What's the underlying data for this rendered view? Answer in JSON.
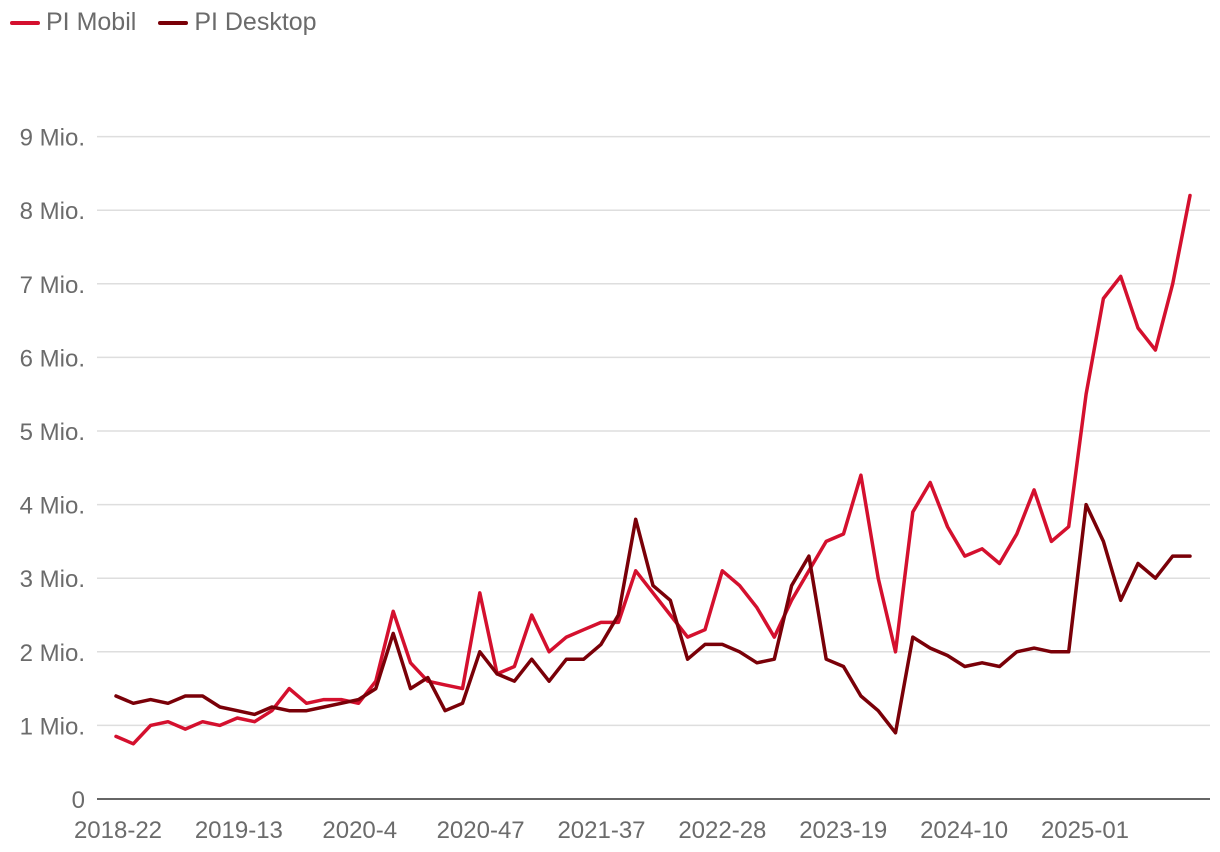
{
  "chart_data": {
    "type": "line",
    "xlabel": "",
    "ylabel": "",
    "grid": true,
    "legend_position": "top-left",
    "x_tick_labels": [
      "2018-22",
      "2019-13",
      "2020-4",
      "2020-47",
      "2021-37",
      "2022-28",
      "2023-19",
      "2024-10",
      "2025-01"
    ],
    "y_ticks": [
      0,
      1,
      2,
      3,
      4,
      5,
      6,
      7,
      8,
      9
    ],
    "y_tick_labels": [
      "0",
      "1 Mio.",
      "2 Mio.",
      "3 Mio.",
      "4 Mio.",
      "5 Mio.",
      "6 Mio.",
      "7 Mio.",
      "8 Mio.",
      "9 Mio."
    ],
    "ylim": [
      0,
      10.3
    ],
    "x": [
      "2018-22",
      "2018-28",
      "2018-34",
      "2018-40",
      "2018-46",
      "2018-52",
      "2019-06",
      "2019-13",
      "2019-19",
      "2019-25",
      "2019-31",
      "2019-37",
      "2019-43",
      "2019-49",
      "2020-04",
      "2020-10",
      "2020-16",
      "2020-22",
      "2020-28",
      "2020-34",
      "2020-40",
      "2020-47",
      "2021-01",
      "2021-07",
      "2021-13",
      "2021-19",
      "2021-25",
      "2021-31",
      "2021-37",
      "2021-43",
      "2021-49",
      "2022-03",
      "2022-10",
      "2022-16",
      "2022-22",
      "2022-28",
      "2022-34",
      "2022-40",
      "2022-46",
      "2023-01",
      "2023-07",
      "2023-13",
      "2023-19",
      "2023-25",
      "2023-31",
      "2023-37",
      "2023-43",
      "2023-49",
      "2024-03",
      "2024-10",
      "2024-16",
      "2024-22",
      "2024-28",
      "2024-34",
      "2024-40",
      "2024-46",
      "2025-01",
      "2025-07",
      "2025-13",
      "2025-19",
      "2025-25",
      "2025-31",
      "2025-37"
    ],
    "series": [
      {
        "name": "PI Mobil",
        "color": "#d4102e",
        "values": [
          0.85,
          0.75,
          1.0,
          1.05,
          0.95,
          1.05,
          1.0,
          1.1,
          1.05,
          1.2,
          1.5,
          1.3,
          1.35,
          1.35,
          1.3,
          1.6,
          2.55,
          1.85,
          1.6,
          1.55,
          1.5,
          2.8,
          1.7,
          1.8,
          2.5,
          2.0,
          2.2,
          2.3,
          2.4,
          2.4,
          3.1,
          2.8,
          2.5,
          2.2,
          2.3,
          3.1,
          2.9,
          2.6,
          2.2,
          2.7,
          3.1,
          3.5,
          3.6,
          4.4,
          3.0,
          2.0,
          3.9,
          4.3,
          3.7,
          3.3,
          3.4,
          3.2,
          3.6,
          4.2,
          3.5,
          3.7,
          5.5,
          6.8,
          7.1,
          6.4,
          6.1,
          7.0,
          8.2
        ]
      },
      {
        "name": "PI Desktop",
        "color": "#7a0008",
        "values": [
          1.4,
          1.3,
          1.35,
          1.3,
          1.4,
          1.4,
          1.25,
          1.2,
          1.15,
          1.25,
          1.2,
          1.2,
          1.25,
          1.3,
          1.35,
          1.5,
          2.25,
          1.5,
          1.65,
          1.2,
          1.3,
          2.0,
          1.7,
          1.6,
          1.9,
          1.6,
          1.9,
          1.9,
          2.1,
          2.5,
          3.8,
          2.9,
          2.7,
          1.9,
          2.1,
          2.1,
          2.0,
          1.85,
          1.9,
          2.9,
          3.3,
          1.9,
          1.8,
          1.4,
          1.2,
          0.9,
          2.2,
          2.05,
          1.95,
          1.8,
          1.85,
          1.8,
          2.0,
          2.05,
          2.0,
          2.0,
          4.0,
          3.5,
          2.7,
          3.2,
          3.0,
          3.3,
          3.3
        ]
      }
    ]
  }
}
